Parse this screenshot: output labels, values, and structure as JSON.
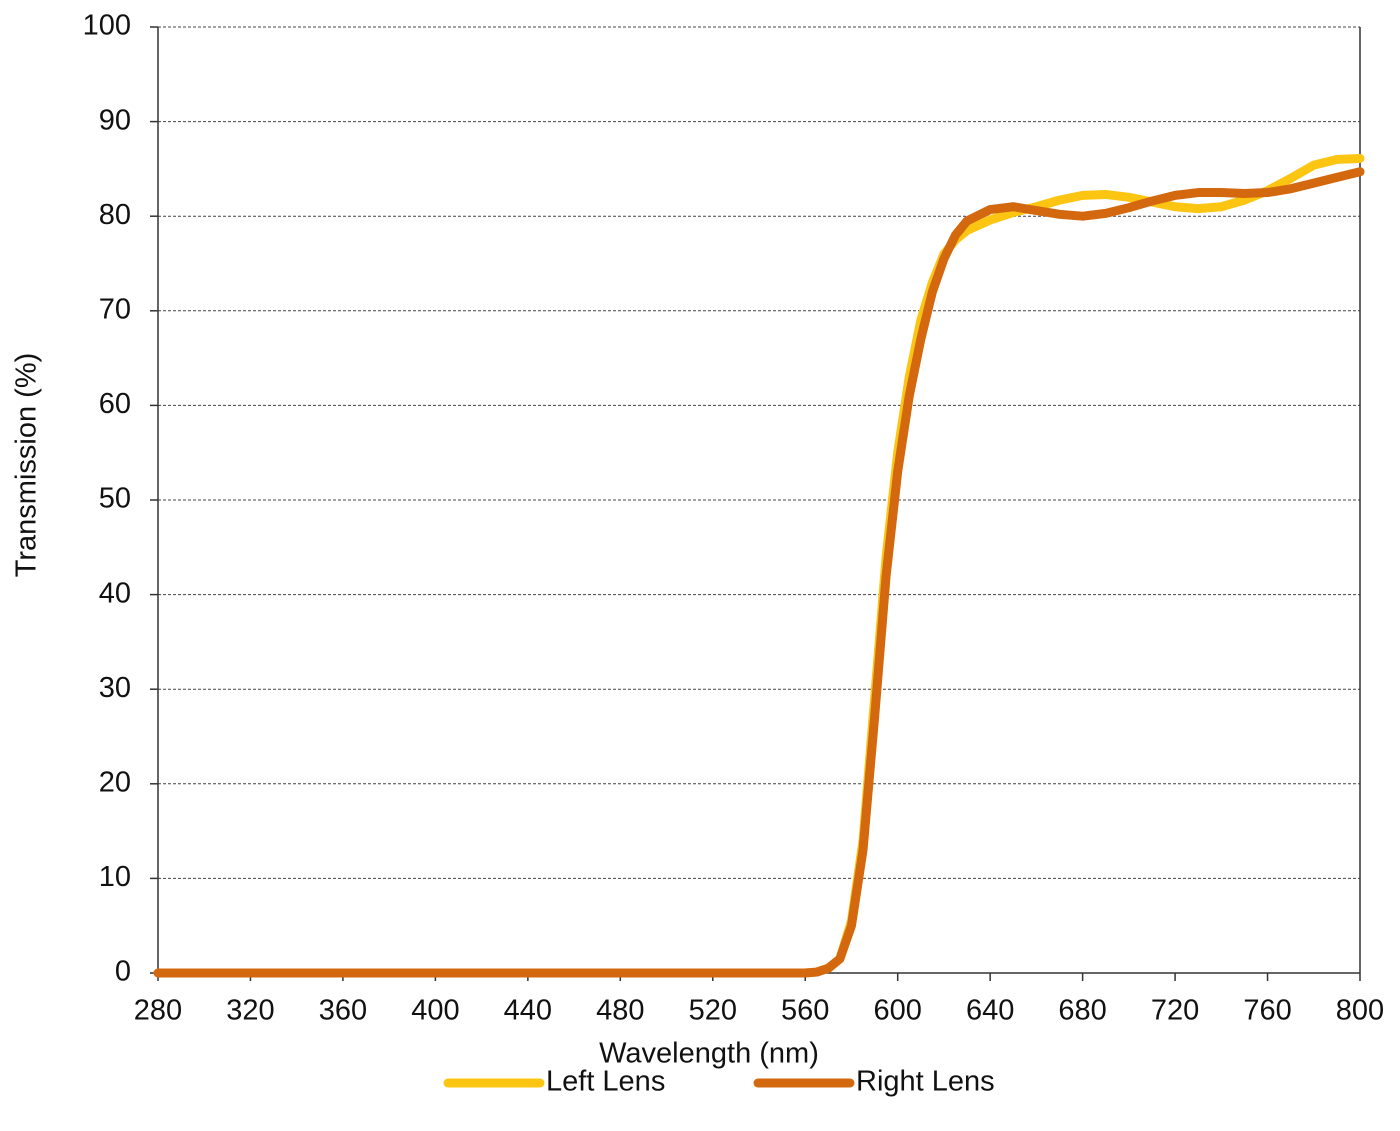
{
  "chart_data": {
    "type": "line",
    "x_label": "Wavelength (nm)",
    "y_label": "Transmission (%)",
    "x": [
      280,
      320,
      360,
      400,
      440,
      480,
      520,
      560,
      565,
      570,
      575,
      580,
      585,
      590,
      595,
      600,
      605,
      610,
      615,
      620,
      625,
      630,
      640,
      650,
      660,
      670,
      680,
      690,
      700,
      710,
      720,
      730,
      740,
      750,
      760,
      770,
      780,
      790,
      800
    ],
    "series": [
      {
        "name": "Left Lens",
        "color": "#fcc512",
        "values": [
          0,
          0,
          0,
          0,
          0,
          0,
          0,
          0,
          0.1,
          0.5,
          1.5,
          5.5,
          14,
          29,
          44,
          55,
          63,
          69,
          73,
          76,
          77.5,
          78.5,
          79.6,
          80.4,
          81,
          81.7,
          82.2,
          82.3,
          82,
          81.5,
          81,
          80.8,
          81,
          81.7,
          82.7,
          84,
          85.4,
          86,
          86.1
        ]
      },
      {
        "name": "Right Lens",
        "color": "#d4680f",
        "values": [
          0,
          0,
          0,
          0,
          0,
          0,
          0,
          0,
          0.1,
          0.5,
          1.5,
          5,
          13,
          27,
          42,
          53,
          61,
          67,
          72,
          75.5,
          78,
          79.5,
          80.7,
          81,
          80.6,
          80.2,
          80,
          80.3,
          80.9,
          81.6,
          82.2,
          82.5,
          82.5,
          82.4,
          82.5,
          82.9,
          83.5,
          84.1,
          84.7
        ]
      }
    ],
    "xlim": [
      280,
      800
    ],
    "xticks": [
      280,
      320,
      360,
      400,
      440,
      480,
      520,
      560,
      600,
      640,
      680,
      720,
      760,
      800
    ],
    "ylim": [
      0,
      100
    ],
    "yticks": [
      0,
      10,
      20,
      30,
      40,
      50,
      60,
      70,
      80,
      90,
      100
    ],
    "grid": true,
    "legend": "bottom"
  }
}
